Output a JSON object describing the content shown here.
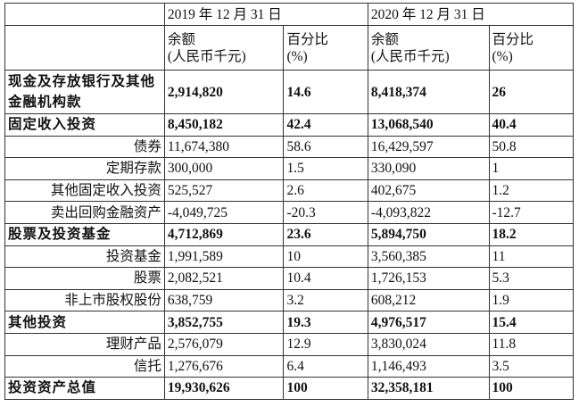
{
  "header": {
    "years": [
      "2019 年 12 月 31 日",
      "2020 年 12 月 31 日"
    ],
    "amount_label": "余额",
    "amount_unit": "(人民币千元)",
    "pct_label": "百分比",
    "pct_unit": "(%)"
  },
  "rows": [
    {
      "label": "现金及存放银行及其他金融机构款",
      "v2019": "2,914,820",
      "p2019": "14.6",
      "v2020": "8,418,374",
      "p2020": "26",
      "bold": true
    },
    {
      "label": "固定收入投资",
      "v2019": "8,450,182",
      "p2019": "42.4",
      "v2020": "13,068,540",
      "p2020": "40.4",
      "bold": true
    },
    {
      "label": "债券",
      "v2019": "11,674,380",
      "p2019": "58.6",
      "v2020": "16,429,597",
      "p2020": "50.8",
      "bold": false
    },
    {
      "label": "定期存款",
      "v2019": "300,000",
      "p2019": "1.5",
      "v2020": "330,090",
      "p2020": "1",
      "bold": false
    },
    {
      "label": "其他固定收入投资",
      "v2019": "525,527",
      "p2019": "2.6",
      "v2020": "402,675",
      "p2020": "1.2",
      "bold": false
    },
    {
      "label": "卖出回购金融资产",
      "v2019": "-4,049,725",
      "p2019": "-20.3",
      "v2020": "-4,093,822",
      "p2020": "-12.7",
      "bold": false
    },
    {
      "label": "股票及投资基金",
      "v2019": "4,712,869",
      "p2019": "23.6",
      "v2020": "5,894,750",
      "p2020": "18.2",
      "bold": true
    },
    {
      "label": "投资基金",
      "v2019": "1,991,589",
      "p2019": "10",
      "v2020": "3,560,385",
      "p2020": "11",
      "bold": false
    },
    {
      "label": "股票",
      "v2019": "2,082,521",
      "p2019": "10.4",
      "v2020": "1,726,153",
      "p2020": "5.3",
      "bold": false
    },
    {
      "label": "非上市股权股份",
      "v2019": "638,759",
      "p2019": "3.2",
      "v2020": "608,212",
      "p2020": "1.9",
      "bold": false
    },
    {
      "label": "其他投资",
      "v2019": "3,852,755",
      "p2019": "19.3",
      "v2020": "4,976,517",
      "p2020": "15.4",
      "bold": true
    },
    {
      "label": "理财产品",
      "v2019": "2,576,079",
      "p2019": "12.9",
      "v2020": "3,830,024",
      "p2020": "11.8",
      "bold": false
    },
    {
      "label": "信托",
      "v2019": "1,276,676",
      "p2019": "6.4",
      "v2020": "1,146,493",
      "p2020": "3.5",
      "bold": false
    },
    {
      "label": "投资资产总值",
      "v2019": "19,930,626",
      "p2019": "100",
      "v2020": "32,358,181",
      "p2020": "100",
      "bold": true
    }
  ]
}
